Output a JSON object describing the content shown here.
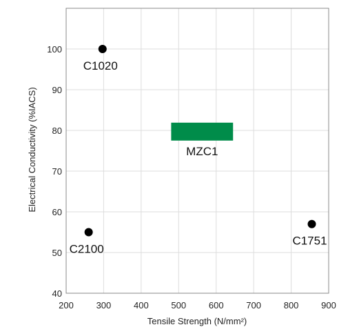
{
  "chart_data": {
    "type": "scatter",
    "xlabel": "Tensile Strength (N/mm²)",
    "ylabel": "Electrical Conductivity (%IACS)",
    "xlim": [
      200,
      900
    ],
    "ylim": [
      40,
      110
    ],
    "xticks": [
      200,
      300,
      400,
      500,
      600,
      700,
      800,
      900
    ],
    "yticks": [
      40,
      50,
      60,
      70,
      80,
      90,
      100
    ],
    "grid": true,
    "legend": "none",
    "points": [
      {
        "label": "C1020",
        "x": 297,
        "y": 100,
        "label_side": "below"
      },
      {
        "label": "C2100",
        "x": 260,
        "y": 55,
        "label_side": "below"
      },
      {
        "label": "C1751",
        "x": 855,
        "y": 57,
        "label_side": "below"
      }
    ],
    "ranges": [
      {
        "label": "MZC1",
        "x": [
          480,
          645
        ],
        "y": [
          77.5,
          81.9
        ],
        "color": "#008c4a",
        "label_side": "below"
      }
    ],
    "colors": {
      "point": "#000000",
      "grid": "#dddddd",
      "axis": "#888888"
    }
  }
}
